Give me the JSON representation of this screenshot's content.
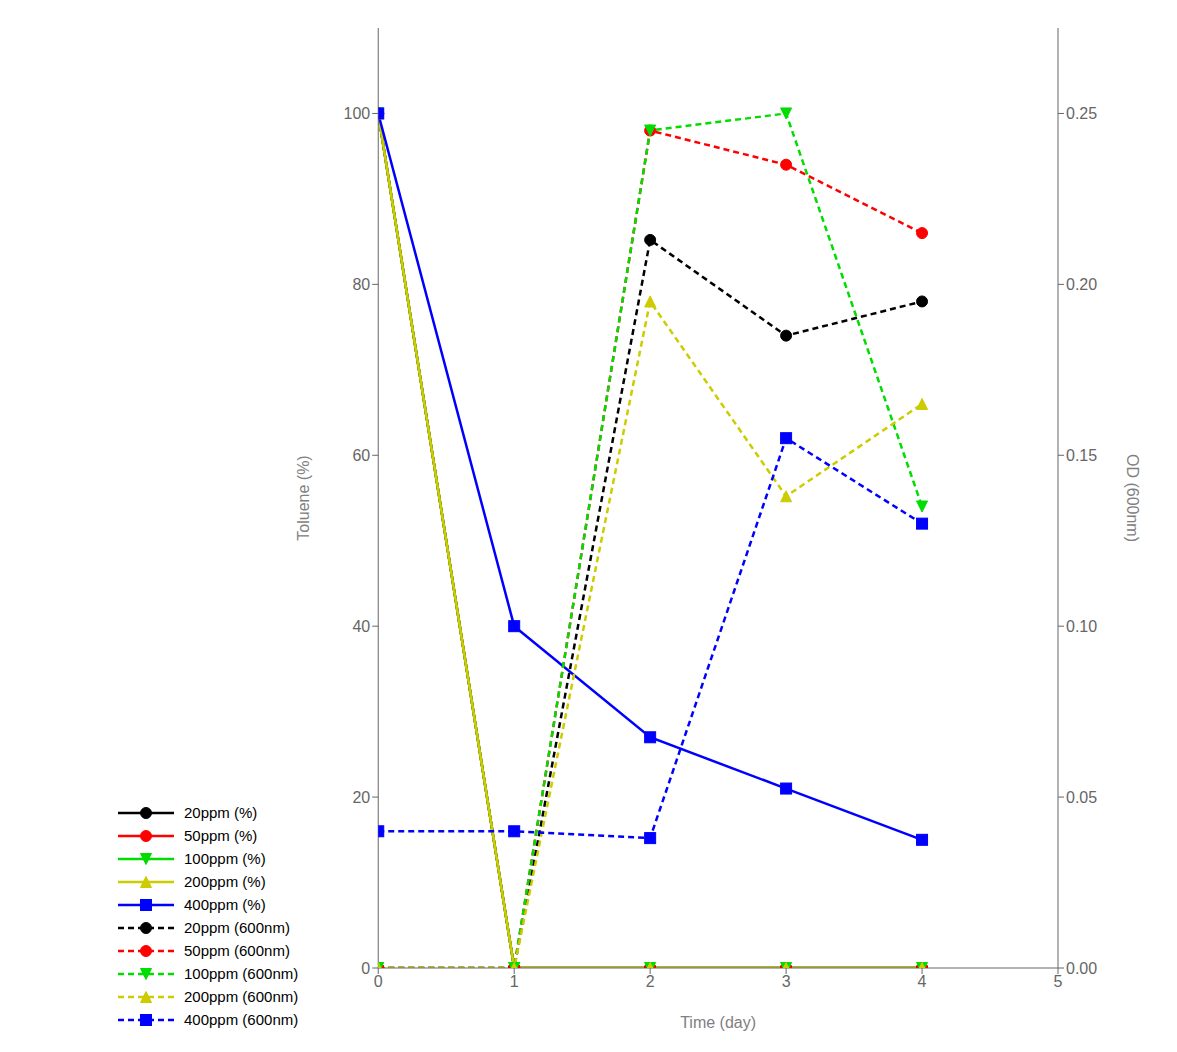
{
  "chart_data": {
    "type": "line",
    "xlabel": "Time (day)",
    "ylabel": "Toluene (%)",
    "y2label": "OD (600nm)",
    "x": [
      0,
      1,
      2,
      3,
      4
    ],
    "xlim": [
      0,
      5
    ],
    "xticks": [
      0,
      1,
      2,
      3,
      4,
      5
    ],
    "ylim": [
      0,
      110
    ],
    "yticks": [
      0,
      20,
      40,
      60,
      80,
      100
    ],
    "y2lim": [
      0.0,
      0.275
    ],
    "y2ticks": [
      {
        "value": 0.0,
        "label": "0.00"
      },
      0.05,
      {
        "value": 0.1,
        "label": "0.10"
      },
      0.15,
      {
        "value": 0.2,
        "label": "0.20"
      },
      0.25
    ],
    "grid": false,
    "legend": "lower left",
    "series": [
      {
        "name": "20ppm (%)",
        "color": "#000000",
        "marker": "circle",
        "line_style": "solid",
        "values": [
          100,
          0,
          0,
          0,
          0
        ]
      },
      {
        "name": "50ppm (%)",
        "color": "#ff0000",
        "marker": "circle",
        "line_style": "solid",
        "values": [
          100,
          0,
          0,
          0,
          0
        ]
      },
      {
        "name": "100ppm (%)",
        "color": "#00dd00",
        "marker": "triangle-down",
        "line_style": "solid",
        "values": [
          100,
          0,
          0,
          0,
          0
        ]
      },
      {
        "name": "200ppm (%)",
        "color": "#cccc00",
        "marker": "triangle",
        "line_style": "solid",
        "values": [
          100,
          0,
          0,
          0,
          0
        ]
      },
      {
        "name": "400ppm (%)",
        "color": "#0000ff",
        "marker": "square",
        "line_style": "solid",
        "values": [
          100,
          40,
          27,
          21,
          15
        ]
      },
      {
        "name": "20ppm (600nm)",
        "color": "#000000",
        "marker": "circle",
        "line_style": "dashed",
        "axis": "y2",
        "values": [
          0.0,
          0.0,
          0.213,
          0.185,
          0.195
        ]
      },
      {
        "name": "50ppm (600nm)",
        "color": "#ff0000",
        "marker": "circle",
        "line_style": "dashed",
        "axis": "y2",
        "values": [
          0.0,
          0.0,
          0.245,
          0.235,
          0.215
        ]
      },
      {
        "name": "100ppm (600nm)",
        "color": "#00dd00",
        "marker": "triangle-down",
        "line_style": "dashed",
        "axis": "y2",
        "values": [
          0.0,
          0.0,
          0.245,
          0.25,
          0.135
        ]
      },
      {
        "name": "200ppm (600nm)",
        "color": "#cccc00",
        "marker": "triangle",
        "line_style": "dashed",
        "axis": "y2",
        "values": [
          0.0,
          0.0,
          0.195,
          0.138,
          0.165
        ]
      },
      {
        "name": "400ppm (600nm)",
        "color": "#0000ff",
        "marker": "square",
        "line_style": "dashed",
        "axis": "y2",
        "values": [
          0.04,
          0.04,
          0.038,
          0.155,
          0.13
        ]
      }
    ]
  }
}
